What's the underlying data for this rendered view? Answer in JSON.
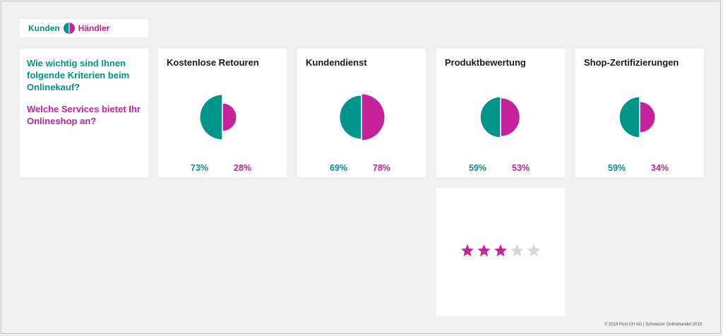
{
  "legend": {
    "customers_label": "Kunden",
    "retailers_label": "Händler",
    "customers_color": "#00958a",
    "retailers_color": "#c5229c"
  },
  "questions": {
    "customers_question": "Wie wichtig sind Ihnen folgende Kriterien beim Onlinekauf?",
    "retailers_question": "Welche Services bietet Ihr Onlineshop an?"
  },
  "chart_data": {
    "type": "pie",
    "categories": [
      "Kostenlose Retouren",
      "Kundendienst",
      "Produktbewertung",
      "Shop-Zertifizierungen"
    ],
    "series": [
      {
        "name": "Kunden",
        "values": [
          73,
          69,
          59,
          59
        ],
        "labels": [
          "73%",
          "69%",
          "59%",
          "59%"
        ],
        "color": "#00958a"
      },
      {
        "name": "Händler",
        "values": [
          28,
          78,
          53,
          34
        ],
        "labels": [
          "28%",
          "78%",
          "53%",
          "34%"
        ],
        "color": "#c5229c"
      }
    ]
  },
  "rating": {
    "value": 3,
    "max": 5,
    "filled_color": "#c5229c",
    "empty_color": "#d6d6d6"
  },
  "footer": {
    "copyright": "© 2019 Post CH AG | Schweizer Onlinehandel 2019"
  }
}
